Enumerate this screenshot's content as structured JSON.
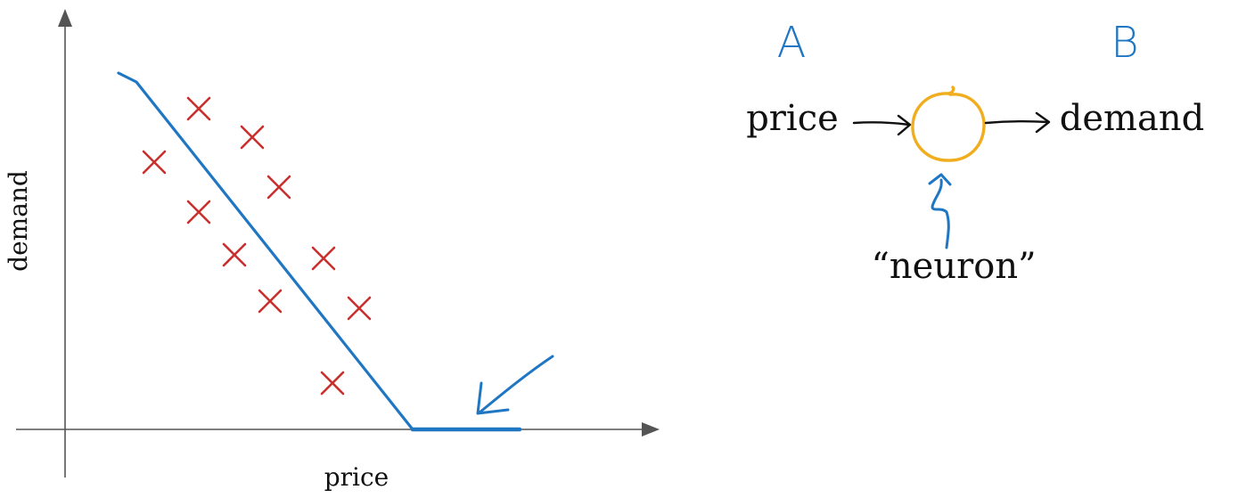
{
  "colors": {
    "axis": "#555555",
    "ink": "#111111",
    "fit_line": "#1f77c4",
    "data_points": "#c8302e",
    "neuron": "#f0ad1e",
    "annotation": "#1f77c4"
  },
  "chart_data": {
    "type": "scatter",
    "xlabel": "price",
    "ylabel": "demand",
    "marker": "x",
    "points": [
      {
        "x": 1.5,
        "y": 9.0
      },
      {
        "x": 2.1,
        "y": 8.2
      },
      {
        "x": 1.0,
        "y": 7.5
      },
      {
        "x": 2.4,
        "y": 6.8
      },
      {
        "x": 1.5,
        "y": 6.1
      },
      {
        "x": 1.9,
        "y": 4.9
      },
      {
        "x": 2.9,
        "y": 4.8
      },
      {
        "x": 2.3,
        "y": 3.6
      },
      {
        "x": 3.3,
        "y": 3.4
      },
      {
        "x": 3.0,
        "y": 1.3
      }
    ],
    "fit_line": [
      {
        "x": 0.6,
        "y": 10.0
      },
      {
        "x": 0.8,
        "y": 9.75
      },
      {
        "x": 3.9,
        "y": 0.0
      },
      {
        "x": 5.1,
        "y": 0.0
      }
    ],
    "xlim": [
      0,
      7
    ],
    "ylim": [
      0,
      11
    ],
    "grid": false,
    "annotation": "arrow-pointing-to-flat-segment"
  },
  "diagram": {
    "label_a": "A",
    "label_b": "B",
    "input": "price",
    "output": "demand",
    "neuron_label": "“neuron”"
  }
}
